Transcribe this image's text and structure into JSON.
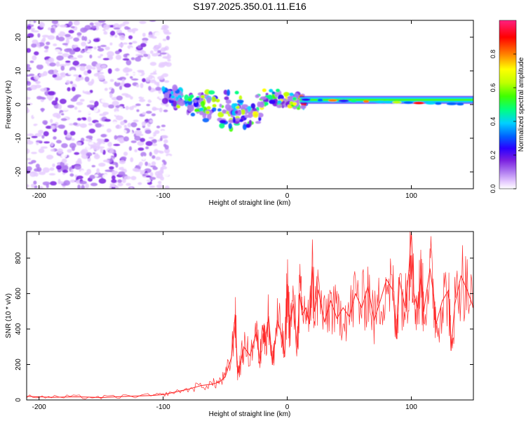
{
  "figure": {
    "title": "S197.2025.350.01.11.E16"
  },
  "chart_data": [
    {
      "type": "heatmap",
      "xlabel": "Height of straight line (km)",
      "ylabel": "Frequency (Hz)",
      "xlim": [
        -210,
        150
      ],
      "ylim": [
        -25,
        25
      ],
      "xticks": [
        -200,
        -100,
        0,
        100
      ],
      "yticks": [
        -20,
        -10,
        0,
        10,
        20
      ],
      "xtick_labels": [
        "-200",
        "-100",
        "0",
        "100"
      ],
      "ytick_labels": [
        "-20",
        "-10",
        "0",
        "10",
        "20"
      ],
      "colorbar": {
        "label": "Normalized spectral amplitude",
        "range": [
          0,
          1
        ],
        "ticks": [
          0.0,
          0.2,
          0.4,
          0.6,
          0.8
        ],
        "tick_labels": [
          "0.0",
          "0.2",
          "0.4",
          "0.6",
          "0.8"
        ],
        "colormap": [
          "#ffffff",
          "#e6ccff",
          "#b07cf0",
          "#7a1fe0",
          "#2a00ff",
          "#0060ff",
          "#00d0ff",
          "#00ff80",
          "#40ff00",
          "#c0ff00",
          "#ffff00",
          "#ff8000",
          "#ff0000",
          "#ff2080"
        ]
      },
      "regions": [
        {
          "name": "noise scatter",
          "x_range": [
            -210,
            -95
          ],
          "freq_range": [
            -25,
            25
          ],
          "amplitude_range": [
            0.0,
            0.2
          ]
        },
        {
          "name": "transition band",
          "x_range": [
            -100,
            15
          ],
          "freq_range": [
            -12,
            8
          ],
          "amplitude_range": [
            0.1,
            0.9
          ]
        },
        {
          "name": "tonal line",
          "x_range": [
            10,
            150
          ],
          "freq_center": [
            1.5,
            0
          ],
          "amplitude_range": [
            0.3,
            1.0
          ]
        }
      ]
    },
    {
      "type": "line",
      "xlabel": "Height of straight line (km)",
      "ylabel": "SNR (10 * v/v)",
      "xlim": [
        -210,
        150
      ],
      "ylim": [
        0,
        950
      ],
      "xticks": [
        -200,
        -100,
        0,
        100
      ],
      "yticks": [
        0,
        200,
        400,
        600,
        800
      ],
      "xtick_labels": [
        "-200",
        "-100",
        "0",
        "100"
      ],
      "ytick_labels": [
        "0",
        "200",
        "400",
        "600",
        "800"
      ],
      "series": [
        {
          "name": "SNR",
          "color": "#ff2020",
          "x": [
            -210,
            -190,
            -170,
            -150,
            -130,
            -110,
            -100,
            -90,
            -80,
            -70,
            -60,
            -55,
            -50,
            -45,
            -42,
            -40,
            -38,
            -35,
            -30,
            -25,
            -22,
            -20,
            -18,
            -15,
            -12,
            -10,
            -8,
            -5,
            -2,
            0,
            2,
            5,
            8,
            10,
            12,
            15,
            18,
            20,
            22,
            25,
            30,
            35,
            40,
            45,
            50,
            55,
            60,
            65,
            70,
            75,
            80,
            85,
            88,
            90,
            95,
            98,
            100,
            102,
            105,
            108,
            110,
            115,
            118,
            120,
            125,
            130,
            132,
            135,
            140,
            145,
            150
          ],
          "y": [
            20,
            15,
            18,
            14,
            20,
            25,
            30,
            45,
            60,
            80,
            90,
            100,
            130,
            240,
            480,
            150,
            200,
            300,
            250,
            380,
            220,
            420,
            330,
            470,
            200,
            320,
            450,
            380,
            250,
            650,
            420,
            540,
            300,
            600,
            480,
            520,
            430,
            750,
            500,
            620,
            440,
            560,
            460,
            520,
            470,
            600,
            520,
            640,
            450,
            560,
            680,
            620,
            350,
            690,
            520,
            730,
            950,
            600,
            520,
            700,
            500,
            740,
            590,
            430,
            560,
            620,
            280,
            540,
            700,
            620,
            520
          ]
        }
      ]
    }
  ]
}
